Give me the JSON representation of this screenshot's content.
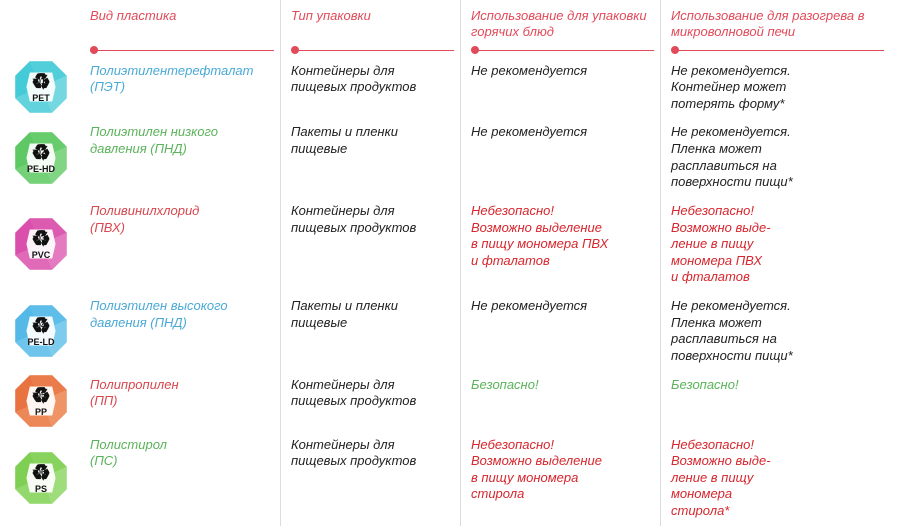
{
  "headers": [
    {
      "text": "Вид пластика",
      "color": "#e24a59"
    },
    {
      "text": "Тип упаковки",
      "color": "#e24a59"
    },
    {
      "text": "Использование\nдля упаковки\nгорячих блюд",
      "color": "#e24a59"
    },
    {
      "text": "Использование\nдля разогрева\nв микроволновой\nпечи",
      "color": "#e24a59"
    }
  ],
  "rows": [
    {
      "gem": {
        "color1": "#3fc9d6",
        "color2": "#b6e9ee",
        "num": "01",
        "abbr": "PET"
      },
      "name": {
        "text": "Полиэтилентерефталат\n(ПЭТ)",
        "color": "#4aa9d6"
      },
      "packaging": {
        "text": "Контейнеры для\nпищевых продуктов",
        "color": "#222222"
      },
      "hot": {
        "text": "Не рекомендуется",
        "color": "#222222"
      },
      "microwave": {
        "text": "Не рекомендуется.\nКонтейнер может\nпотерять форму*",
        "color": "#222222"
      }
    },
    {
      "gem": {
        "color1": "#58c760",
        "color2": "#b7e7b1",
        "num": "02",
        "abbr": "PE-HD"
      },
      "name": {
        "text": "Полиэтилен низкого\nдавления (ПНД)",
        "color": "#5ab35a"
      },
      "packaging": {
        "text": "Пакеты и пленки\nпищевые",
        "color": "#222222"
      },
      "hot": {
        "text": "Не рекомендуется",
        "color": "#222222"
      },
      "microwave": {
        "text": "Не рекомендуется.\nПленка может\nрасплавиться на\nповерхности пищи*",
        "color": "#222222"
      }
    },
    {
      "gem": {
        "color1": "#d84aa8",
        "color2": "#f2b3dc",
        "num": "03",
        "abbr": "PVC"
      },
      "name": {
        "text": "Поливинилхлорид\n(ПВХ)",
        "color": "#d7474e"
      },
      "packaging": {
        "text": "Контейнеры для\nпищевых продуктов",
        "color": "#222222"
      },
      "hot": {
        "text": "Небезопасно!\nВозможно выделение\nв пищу мономера ПВХ\nи фталатов",
        "color": "#d7262d"
      },
      "microwave": {
        "text": "Небезопасно!\nВозможно выде-\nление в пищу\nмономера ПВХ\nи фталатов",
        "color": "#d7262d"
      }
    },
    {
      "gem": {
        "color1": "#4fb6e6",
        "color2": "#b7e4f6",
        "num": "04",
        "abbr": "PE-LD"
      },
      "name": {
        "text": "Полиэтилен высокого\nдавления (ПНД)",
        "color": "#4aa9d6"
      },
      "packaging": {
        "text": "Пакеты и пленки\nпищевые",
        "color": "#222222"
      },
      "hot": {
        "text": "Не рекомендуется",
        "color": "#222222"
      },
      "microwave": {
        "text": "Не рекомендуется.\nПленка может\nрасплавиться на\nповерхности пищи*",
        "color": "#222222"
      }
    },
    {
      "gem": {
        "color1": "#e86f3b",
        "color2": "#f6c29e",
        "num": "05",
        "abbr": "PP"
      },
      "name": {
        "text": "Полипропилен\n(ПП)",
        "color": "#d7474e"
      },
      "packaging": {
        "text": "Контейнеры для\nпищевых продуктов",
        "color": "#222222"
      },
      "hot": {
        "text": "Безопасно!",
        "color": "#5ab35a"
      },
      "microwave": {
        "text": "Безопасно!",
        "color": "#5ab35a"
      }
    },
    {
      "gem": {
        "color1": "#7bce4f",
        "color2": "#c9edb1",
        "num": "06",
        "abbr": "PS"
      },
      "name": {
        "text": "Полистирол\n(ПС)",
        "color": "#5ab35a"
      },
      "packaging": {
        "text": "Контейнеры для\nпищевых продуктов",
        "color": "#222222"
      },
      "hot": {
        "text": "Небезопасно!\nВозможно выделение\nв пищу мономера\nстирола",
        "color": "#d7262d"
      },
      "microwave": {
        "text": "Небезопасно!\nВозможно выде-\nление в пищу\nмономера\nстирола*",
        "color": "#d7262d"
      }
    }
  ]
}
